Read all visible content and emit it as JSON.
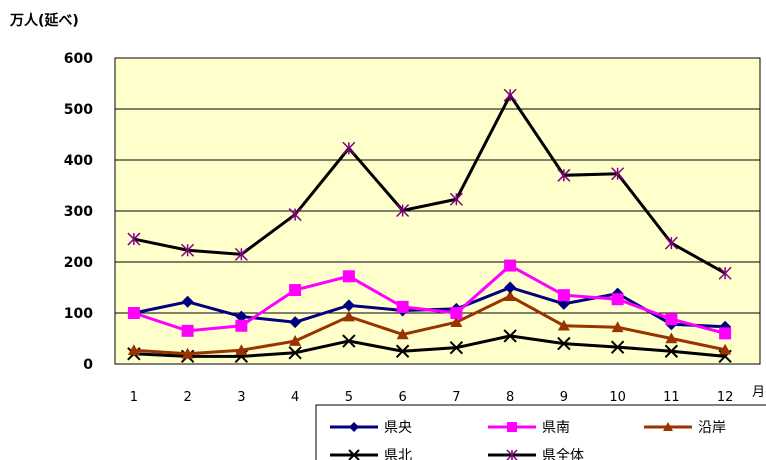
{
  "chart_data": {
    "type": "line",
    "ylabel": "万人(延べ)",
    "xunit_label": "月",
    "ylim": [
      0,
      600
    ],
    "yticks": [
      0,
      100,
      200,
      300,
      400,
      500,
      600
    ],
    "categories": [
      "1",
      "2",
      "3",
      "4",
      "5",
      "6",
      "7",
      "8",
      "9",
      "10",
      "11",
      "12"
    ],
    "grid": true,
    "plot_background": "#FFFFCC",
    "legend_position": "bottom-right",
    "series": [
      {
        "name": "県央",
        "color": "#000080",
        "marker": "diamond",
        "values": [
          100,
          122,
          93,
          82,
          115,
          105,
          108,
          150,
          118,
          138,
          78,
          73
        ]
      },
      {
        "name": "県南",
        "color": "#FF00FF",
        "marker": "square",
        "values": [
          100,
          65,
          75,
          145,
          172,
          112,
          100,
          193,
          135,
          127,
          88,
          60
        ]
      },
      {
        "name": "沿岸",
        "color": "#993300",
        "marker": "triangle",
        "values": [
          27,
          20,
          27,
          45,
          93,
          58,
          82,
          133,
          75,
          72,
          50,
          28
        ]
      },
      {
        "name": "県北",
        "color": "#000000",
        "marker": "x",
        "values": [
          20,
          15,
          15,
          22,
          45,
          25,
          32,
          55,
          40,
          33,
          25,
          15
        ]
      },
      {
        "name": "県全体",
        "color": "#000000",
        "marker": "star",
        "marker_color": "#800080",
        "values": [
          245,
          223,
          215,
          293,
          423,
          301,
          323,
          527,
          370,
          373,
          237,
          178
        ]
      }
    ]
  }
}
